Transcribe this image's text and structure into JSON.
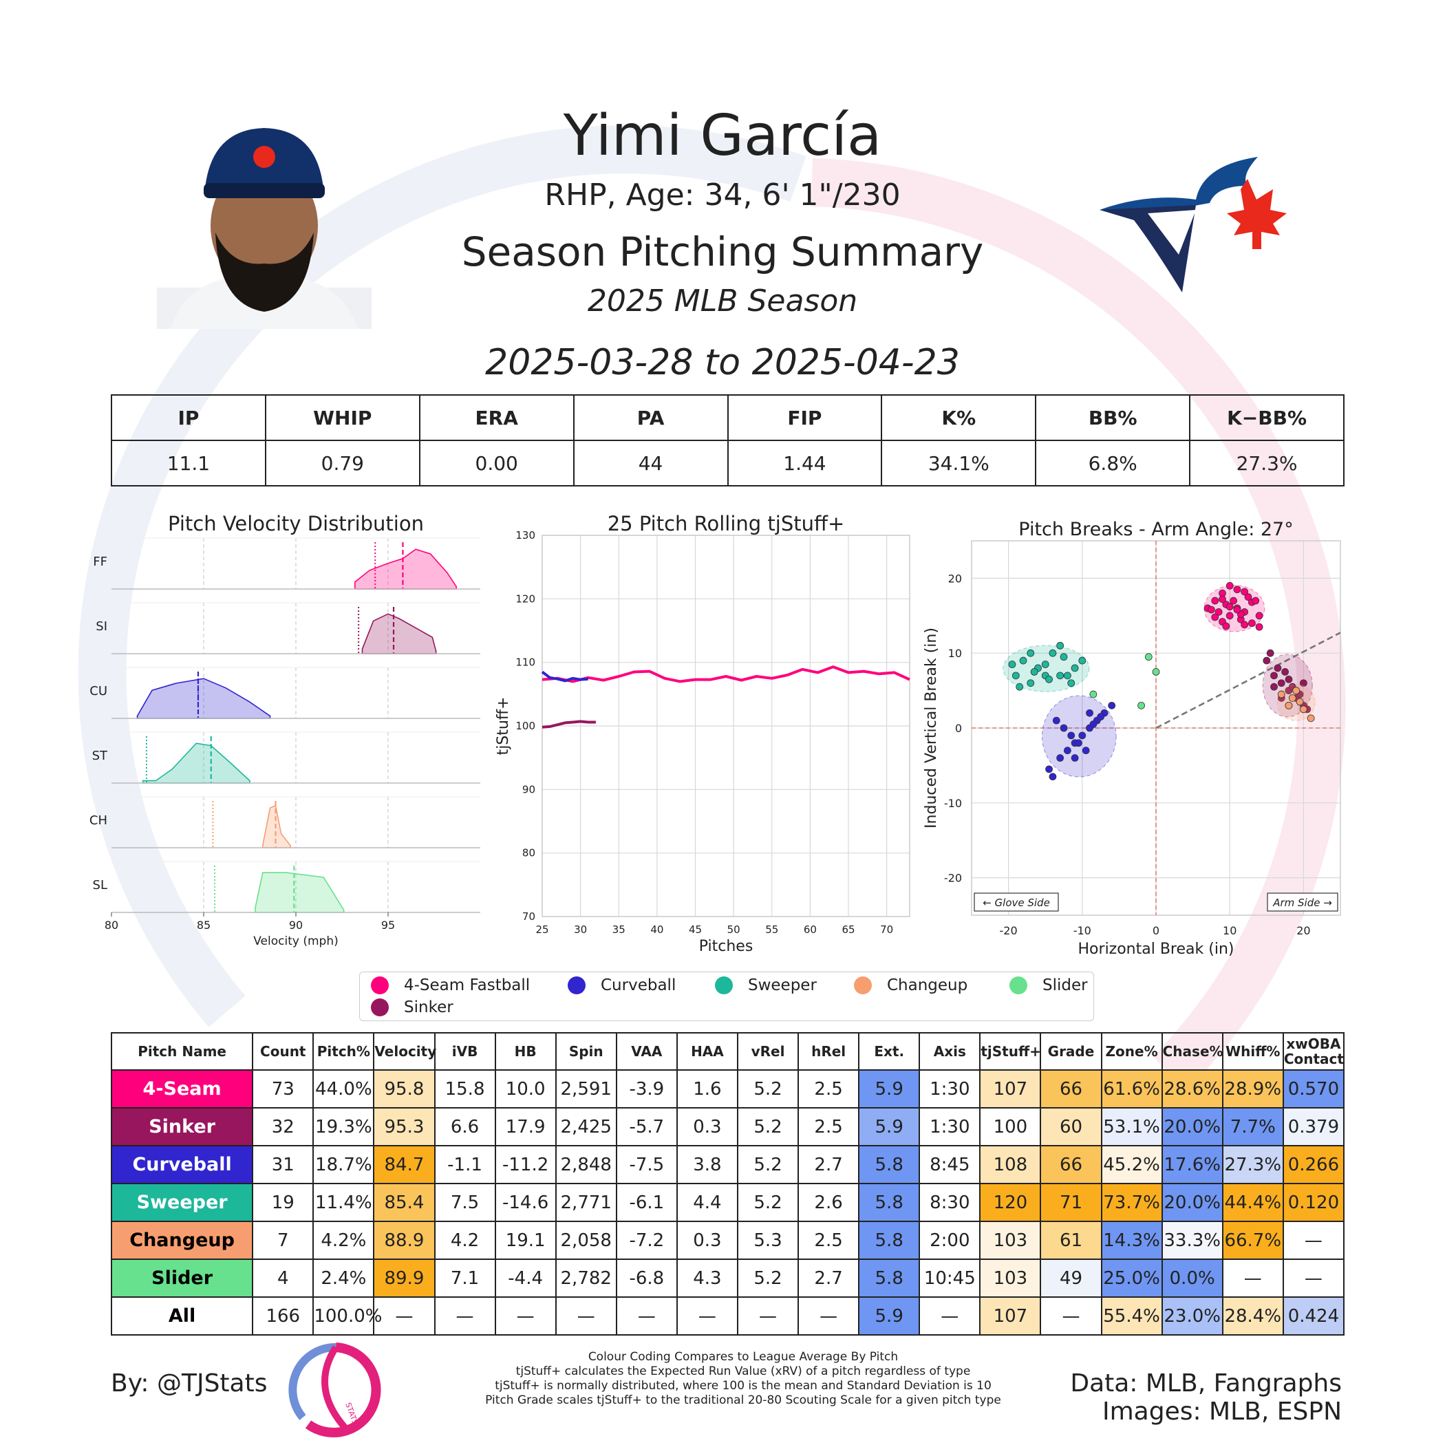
{
  "header": {
    "name": "Yimi García",
    "bio": "RHP, Age: 34, 6' 1\"/230",
    "subtitle": "Season Pitching Summary",
    "season": "2025 MLB Season",
    "dates": "2025-03-28 to 2025-04-23"
  },
  "colors": {
    "FF": "#ff007d",
    "SI": "#98165d",
    "CU": "#3025ce",
    "ST": "#1db79a",
    "CH": "#f79e70",
    "SL": "#67e18d",
    "team_blue": "#134a8e",
    "team_navy": "#1d2d5c",
    "team_red": "#e8291c"
  },
  "summary": {
    "headers": [
      "IP",
      "WHIP",
      "ERA",
      "PA",
      "FIP",
      "K%",
      "BB%",
      "K−BB%"
    ],
    "values": [
      "11.1",
      "0.79",
      "0.00",
      "44",
      "1.44",
      "34.1%",
      "6.8%",
      "27.3%"
    ]
  },
  "chart_data": [
    {
      "type": "area",
      "title": "Pitch Velocity Distribution",
      "xlabel": "Velocity (mph)",
      "xlim": [
        80,
        100
      ],
      "xticks": [
        "80",
        "85",
        "90",
        "95"
      ],
      "series": [
        {
          "name": "FF",
          "color": "#ff007d",
          "mean": 95.8,
          "league_mean": 94.3,
          "x": [
            93.2,
            94,
            95,
            95.8,
            96.5,
            97.3,
            98.2,
            98.7
          ],
          "y": [
            0.15,
            0.4,
            0.55,
            0.65,
            0.85,
            0.75,
            0.35,
            0.05
          ]
        },
        {
          "name": "SI",
          "color": "#98165d",
          "mean": 95.3,
          "league_mean": 93.4,
          "x": [
            93.6,
            94.2,
            95,
            95.6,
            96.5,
            97.4,
            97.6
          ],
          "y": [
            0.1,
            0.7,
            0.85,
            0.75,
            0.55,
            0.35,
            0.05
          ]
        },
        {
          "name": "CU",
          "color": "#3025ce",
          "mean": 84.7,
          "league_mean": 84.7,
          "x": [
            81.4,
            82.2,
            83.5,
            85,
            86.2,
            87.5,
            88.6
          ],
          "y": [
            0.05,
            0.6,
            0.75,
            0.85,
            0.65,
            0.35,
            0.05
          ]
        },
        {
          "name": "ST",
          "color": "#1db79a",
          "mean": 85.4,
          "league_mean": 81.9,
          "x": [
            81.7,
            82.4,
            83.3,
            84.6,
            85.4,
            86.4,
            87.5
          ],
          "y": [
            0.05,
            0.05,
            0.3,
            0.85,
            0.8,
            0.45,
            0.05
          ]
        },
        {
          "name": "CH",
          "color": "#f79e70",
          "mean": 88.9,
          "league_mean": 85.5,
          "x": [
            88.2,
            88.6,
            88.9,
            89.2,
            89.7
          ],
          "y": [
            0.05,
            0.85,
            0.9,
            0.3,
            0.05
          ]
        },
        {
          "name": "SL",
          "color": "#67e18d",
          "mean": 89.9,
          "league_mean": 85.6,
          "x": [
            87.8,
            88.2,
            89.5,
            90.5,
            91.5,
            92.6
          ],
          "y": [
            0.1,
            0.85,
            0.85,
            0.8,
            0.75,
            0.05
          ]
        }
      ]
    },
    {
      "type": "line",
      "title": "25 Pitch Rolling tjStuff+",
      "xlabel": "Pitches",
      "ylabel": "tjStuff+",
      "xlim": [
        25,
        73
      ],
      "ylim": [
        70,
        130
      ],
      "xticks": [
        "25",
        "30",
        "35",
        "40",
        "45",
        "50",
        "55",
        "60",
        "65",
        "70"
      ],
      "yticks": [
        "70",
        "80",
        "90",
        "100",
        "110",
        "120",
        "130"
      ],
      "series": [
        {
          "name": "4-Seam Fastball",
          "color": "#ff007d",
          "x": [
            25,
            27,
            29,
            31,
            33,
            35,
            37,
            39,
            41,
            43,
            45,
            47,
            49,
            51,
            53,
            55,
            57,
            59,
            61,
            63,
            65,
            67,
            69,
            71,
            73
          ],
          "y": [
            107.3,
            107.5,
            107,
            107.6,
            107.2,
            107.8,
            108.5,
            108.6,
            107.5,
            107,
            107.3,
            107.3,
            107.8,
            107.2,
            107.8,
            107.5,
            108,
            108.9,
            108.4,
            109.3,
            108.4,
            108.6,
            108.2,
            108.4,
            107.3
          ]
        },
        {
          "name": "Curveball",
          "color": "#3025ce",
          "x": [
            25,
            26,
            27,
            28,
            29,
            30,
            31
          ],
          "y": [
            108.5,
            107.6,
            107.4,
            107.1,
            107.5,
            107.3,
            107.4
          ]
        },
        {
          "name": "Sinker",
          "color": "#98165d",
          "x": [
            25,
            26,
            27,
            28,
            29,
            30,
            31,
            32
          ],
          "y": [
            99.8,
            99.9,
            100.2,
            100.5,
            100.6,
            100.7,
            100.6,
            100.6
          ]
        }
      ]
    },
    {
      "type": "scatter",
      "title": "Pitch Breaks - Arm Angle: 27°",
      "xlabel": "Horizontal Break (in)",
      "ylabel": "Induced Vertical Break (in)",
      "xlim": [
        -25,
        25
      ],
      "ylim": [
        -25,
        25
      ],
      "xticks": [
        "-20",
        "-10",
        "0",
        "10",
        "20"
      ],
      "yticks": [
        "20",
        "10",
        "0",
        "-10",
        "-20"
      ],
      "annotations": [
        "← Glove Side",
        "Arm Side →"
      ],
      "arm_angle_deg": 27,
      "series": [
        {
          "name": "4-Seam Fastball",
          "color": "#ff007d",
          "x": [
            7,
            8,
            8.5,
            9,
            9.5,
            10,
            10.5,
            11,
            11.5,
            12,
            12.5,
            13,
            8,
            9,
            10,
            11,
            12,
            13,
            14,
            7.5,
            9.5,
            11.5,
            13.5,
            10,
            12,
            14,
            9,
            11
          ],
          "y": [
            16,
            17,
            15.5,
            18,
            16.5,
            15,
            17,
            16,
            14.5,
            15.5,
            17.5,
            14,
            14.8,
            14.2,
            16.2,
            18.5,
            13.8,
            16.8,
            15,
            15.8,
            13.6,
            15.2,
            17,
            19,
            18.2,
            13.5,
            17.2,
            15.8
          ]
        },
        {
          "name": "Sinker",
          "color": "#98165d",
          "x": [
            15,
            16,
            17,
            18,
            19,
            20,
            16.5,
            17.5,
            18.5,
            19.5,
            20.5,
            16,
            17,
            18,
            19,
            15.5,
            18,
            20
          ],
          "y": [
            9,
            7,
            6,
            5,
            4,
            3,
            8,
            7.5,
            5.5,
            4.5,
            2.5,
            5.5,
            4,
            6.5,
            5,
            10,
            3,
            6
          ]
        },
        {
          "name": "Curveball",
          "color": "#3025ce",
          "x": [
            -14,
            -13,
            -12,
            -11,
            -10,
            -9,
            -8,
            -7,
            -6,
            -13.5,
            -12.5,
            -11.5,
            -10.5,
            -9.5,
            -8.5,
            -7.5,
            -14.5,
            -11,
            -9
          ],
          "y": [
            -6.5,
            -4,
            -3,
            -2,
            -1,
            0,
            1,
            2,
            3,
            1,
            0,
            -1,
            -2,
            -3,
            0.5,
            1.5,
            -5.5,
            -4,
            2
          ]
        },
        {
          "name": "Sweeper",
          "color": "#1db79a",
          "x": [
            -19,
            -18,
            -17,
            -16,
            -15,
            -14,
            -13,
            -12,
            -11,
            -10,
            -18.5,
            -16.5,
            -14.5,
            -12.5,
            -17,
            -15,
            -13,
            -11.5,
            -19.5
          ],
          "y": [
            7,
            9,
            6,
            8,
            7,
            10,
            11,
            7,
            8,
            9,
            5.5,
            7.5,
            6.5,
            9.5,
            10,
            8.5,
            7,
            6,
            8.5
          ]
        },
        {
          "name": "Changeup",
          "color": "#f79e70",
          "x": [
            17,
            18,
            19,
            20,
            21,
            18.5,
            19.5
          ],
          "y": [
            4.5,
            3,
            5,
            2.5,
            1.3,
            4,
            3.5
          ]
        },
        {
          "name": "Slider",
          "color": "#67e18d",
          "x": [
            -8.5,
            -1,
            0,
            -2
          ],
          "y": [
            4.5,
            9.5,
            7.5,
            3
          ]
        }
      ]
    }
  ],
  "legend": [
    "4-Seam Fastball",
    "Curveball",
    "Sweeper",
    "Changeup",
    "Slider",
    "Sinker"
  ],
  "pitch_table": {
    "headers": [
      "Pitch Name",
      "Count",
      "Pitch%",
      "Velocity",
      "iVB",
      "HB",
      "Spin",
      "VAA",
      "HAA",
      "vRel",
      "hRel",
      "Ext.",
      "Axis",
      "tjStuff+",
      "Grade",
      "Zone%",
      "Chase%",
      "Whiff%",
      "xwOBA Contact"
    ],
    "rows": [
      [
        "4-Seam",
        "73",
        "44.0%",
        "95.8",
        "15.8",
        "10.0",
        "2,591",
        "-3.9",
        "1.6",
        "5.2",
        "2.5",
        "5.9",
        "1:30",
        "107",
        "66",
        "61.6%",
        "28.6%",
        "28.9%",
        "0.570"
      ],
      [
        "Sinker",
        "32",
        "19.3%",
        "95.3",
        "6.6",
        "17.9",
        "2,425",
        "-5.7",
        "0.3",
        "5.2",
        "2.5",
        "5.9",
        "1:30",
        "100",
        "60",
        "53.1%",
        "20.0%",
        "7.7%",
        "0.379"
      ],
      [
        "Curveball",
        "31",
        "18.7%",
        "84.7",
        "-1.1",
        "-11.2",
        "2,848",
        "-7.5",
        "3.8",
        "5.2",
        "2.7",
        "5.8",
        "8:45",
        "108",
        "66",
        "45.2%",
        "17.6%",
        "27.3%",
        "0.266"
      ],
      [
        "Sweeper",
        "19",
        "11.4%",
        "85.4",
        "7.5",
        "-14.6",
        "2,771",
        "-6.1",
        "4.4",
        "5.2",
        "2.6",
        "5.8",
        "8:30",
        "120",
        "71",
        "73.7%",
        "20.0%",
        "44.4%",
        "0.120"
      ],
      [
        "Changeup",
        "7",
        "4.2%",
        "88.9",
        "4.2",
        "19.1",
        "2,058",
        "-7.2",
        "0.3",
        "5.3",
        "2.5",
        "5.8",
        "2:00",
        "103",
        "61",
        "14.3%",
        "33.3%",
        "66.7%",
        "—"
      ],
      [
        "Slider",
        "4",
        "2.4%",
        "89.9",
        "7.1",
        "-4.4",
        "2,782",
        "-6.8",
        "4.3",
        "5.2",
        "2.7",
        "5.8",
        "10:45",
        "103",
        "49",
        "25.0%",
        "0.0%",
        "—",
        "—"
      ],
      [
        "All",
        "166",
        "100.0%",
        "—",
        "—",
        "—",
        "—",
        "—",
        "—",
        "—",
        "—",
        "5.9",
        "—",
        "107",
        "—",
        "55.4%",
        "23.0%",
        "28.4%",
        "0.424"
      ]
    ],
    "name_cell_colors": [
      "#ff007d",
      "#98165d",
      "#3025ce",
      "#1db79a",
      "#f79e70",
      "#67e18d",
      "#ffffff"
    ],
    "name_text_colors": [
      "#ffffff",
      "#ffffff",
      "#ffffff",
      "#ffffff",
      "#000000",
      "#000000",
      "#000000"
    ],
    "cell_colors": [
      [
        "",
        "",
        "",
        "#fde5b6",
        "",
        "",
        "",
        "",
        "",
        "",
        "",
        "#6f96f2",
        "",
        "#fde5b6",
        "#fbc45a",
        "#fbc45a",
        "#fbc45a",
        "#fbc45a",
        "#6f96f2"
      ],
      [
        "",
        "",
        "",
        "#fde5b6",
        "",
        "",
        "",
        "",
        "",
        "",
        "",
        "#8eadf4",
        "",
        "",
        "#fde5b6",
        "#e8eefb",
        "#6f96f2",
        "#6f96f2",
        "#eef2fb"
      ],
      [
        "",
        "",
        "",
        "#fbae1d",
        "",
        "",
        "",
        "",
        "",
        "",
        "",
        "#6f96f2",
        "",
        "#fde5b6",
        "#fbc45a",
        "#fdf3e0",
        "#6f96f2",
        "#c9d6f5",
        "#fbae1d"
      ],
      [
        "",
        "",
        "",
        "#fbc45a",
        "",
        "",
        "",
        "",
        "",
        "",
        "",
        "#6f96f2",
        "",
        "#fbae1d",
        "#fbae1d",
        "#fbae1d",
        "#6f96f2",
        "#fbae1d",
        "#fbae1d"
      ],
      [
        "",
        "",
        "",
        "#fbc45a",
        "",
        "",
        "",
        "",
        "",
        "",
        "",
        "#6f96f2",
        "",
        "#fdf3e0",
        "#fdd88f",
        "#6f96f2",
        "#f4f6fb",
        "#fbae1d",
        ""
      ],
      [
        "",
        "",
        "",
        "#fbae1d",
        "",
        "",
        "",
        "",
        "",
        "",
        "",
        "#6f96f2",
        "",
        "#fdf3e0",
        "#eef2fb",
        "#6f96f2",
        "#6f96f2",
        "",
        ""
      ],
      [
        "",
        "",
        "",
        "",
        "",
        "",
        "",
        "",
        "",
        "",
        "",
        "#6f96f2",
        "",
        "#fde5b6",
        "",
        "#fde5b6",
        "#a9c1f7",
        "#fde5b6",
        "#bdcdf5"
      ]
    ]
  },
  "footer": {
    "by": "By: @TJStats",
    "logo_text": "STATS",
    "data": "Data: MLB, Fangraphs",
    "images": "Images: MLB, ESPN",
    "notes": [
      "Colour Coding Compares to League Average By Pitch",
      "tjStuff+ calculates the Expected Run Value (xRV) of a pitch regardless of type",
      "tjStuff+ is normally distributed, where 100 is the mean and Standard Deviation is 10",
      "Pitch Grade scales tjStuff+ to the traditional 20-80 Scouting Scale for a given pitch type"
    ]
  }
}
